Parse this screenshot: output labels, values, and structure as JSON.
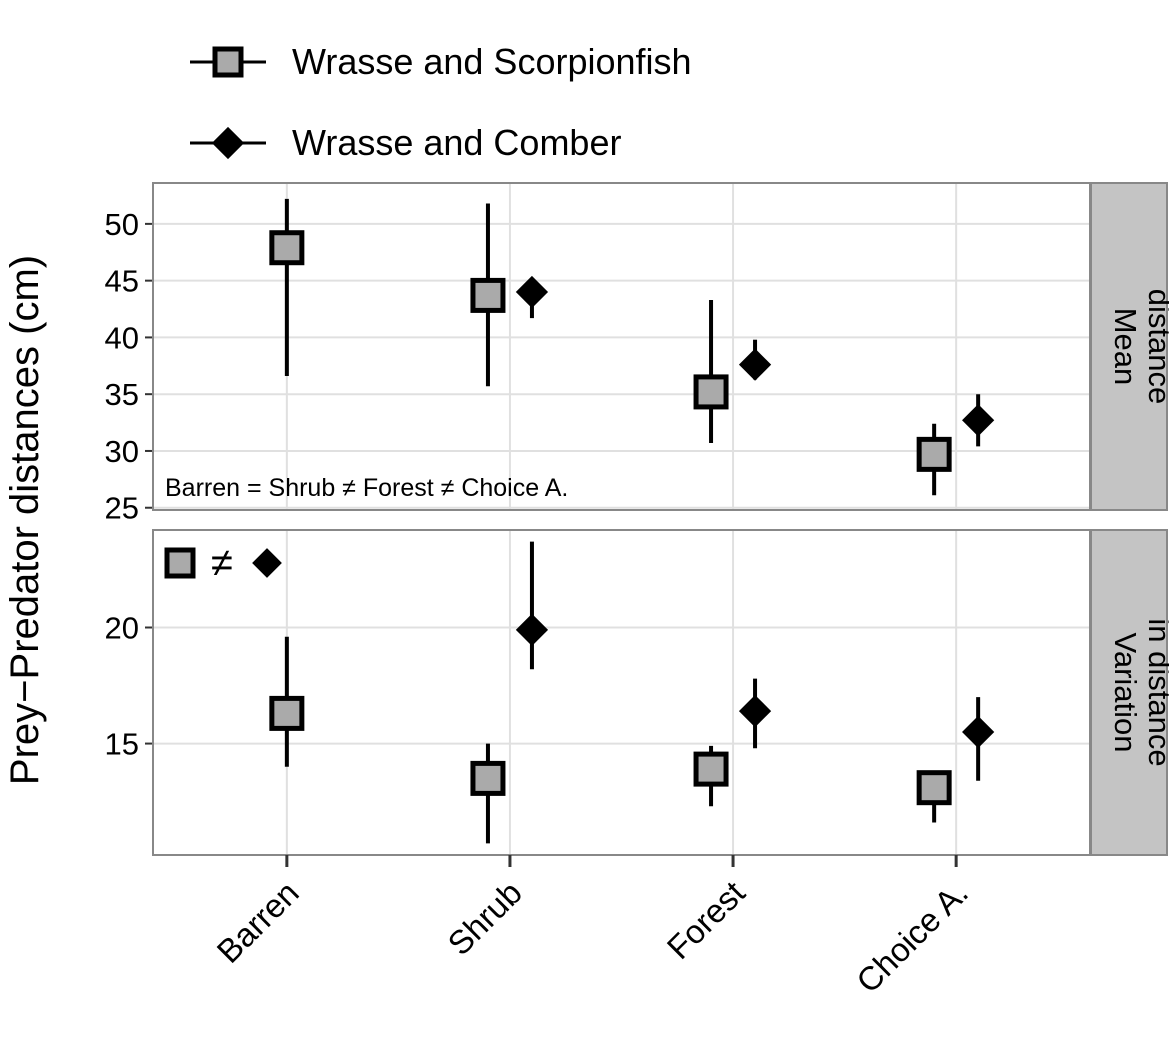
{
  "chart_data": {
    "type": "point",
    "y_label": "Prey−Predator distances (cm)",
    "categories": [
      "Barren",
      "Shrub",
      "Forest",
      "Choice A."
    ],
    "series": [
      {
        "name": "Wrasse and Scorpionfish",
        "marker": "square",
        "color": "#aaaaaa"
      },
      {
        "name": "Wrasse and Comber",
        "marker": "diamond",
        "color": "#000000"
      }
    ],
    "grid": true,
    "panels": [
      {
        "strip": [
          "Mean",
          "distance"
        ],
        "ylim": [
          24.8,
          53.6
        ],
        "yticks": [
          25,
          30,
          35,
          40,
          45,
          50
        ],
        "annotation": "Barren = Shrub ≠ Forest ≠ Choice A.",
        "values": [
          [
            47.9,
            43.7,
            35.2,
            29.7
          ],
          [
            null,
            44.0,
            37.6,
            32.7
          ]
        ],
        "lower": [
          [
            36.6,
            35.7,
            30.7,
            26.1
          ],
          [
            null,
            41.7,
            36.3,
            30.4
          ]
        ],
        "upper": [
          [
            52.2,
            51.8,
            43.3,
            32.4
          ],
          [
            null,
            44.8,
            39.8,
            35.0
          ]
        ]
      },
      {
        "strip": [
          "Variation",
          "in distance"
        ],
        "ylim": [
          10.2,
          24.2
        ],
        "yticks": [
          15,
          20
        ],
        "annotation": "≠",
        "values": [
          [
            16.3,
            13.5,
            13.9,
            13.1
          ],
          [
            null,
            19.9,
            16.4,
            15.5
          ]
        ],
        "lower": [
          [
            14.0,
            10.7,
            12.3,
            11.6
          ],
          [
            null,
            18.2,
            14.8,
            13.4
          ]
        ],
        "upper": [
          [
            19.6,
            15.0,
            14.9,
            13.8
          ],
          [
            null,
            23.7,
            17.8,
            17.0
          ]
        ]
      }
    ]
  }
}
